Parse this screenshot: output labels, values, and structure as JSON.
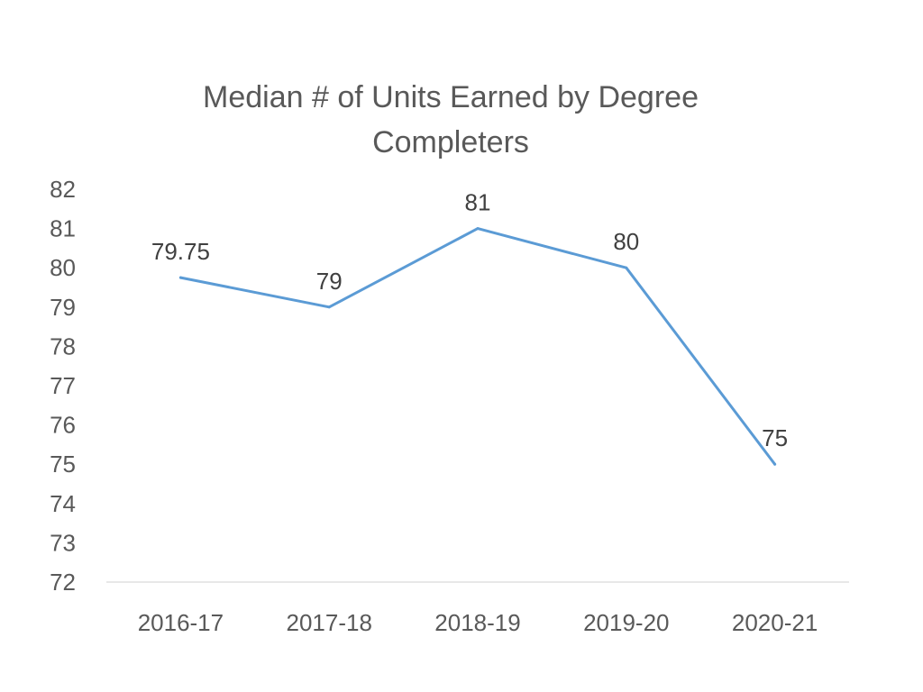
{
  "chart_data": {
    "type": "line",
    "title_lines": [
      "Median # of Units Earned by Degree",
      "Completers"
    ],
    "xlabel": "",
    "ylabel": "",
    "categories": [
      "2016-17",
      "2017-18",
      "2018-19",
      "2019-20",
      "2020-21"
    ],
    "series": [
      {
        "values": [
          79.75,
          79,
          81,
          80,
          75
        ],
        "color": "#5B9BD5"
      }
    ],
    "data_labels": [
      "79.75",
      "79",
      "81",
      "80",
      "75"
    ],
    "ylim": [
      72,
      82
    ],
    "yticks": [
      "72",
      "73",
      "74",
      "75",
      "76",
      "77",
      "78",
      "79",
      "80",
      "81",
      "82"
    ],
    "grid": false,
    "legend": "none",
    "axis_line_color": "#D9D9D9"
  }
}
